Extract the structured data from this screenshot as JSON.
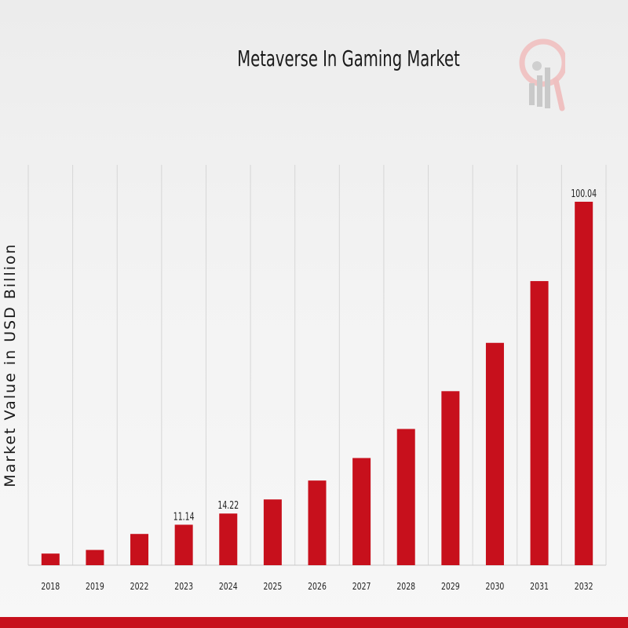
{
  "chart_data": {
    "type": "bar",
    "title": "Metaverse In Gaming Market",
    "ylabel": "Market Value in USD Billion",
    "xlabel": "",
    "categories": [
      "2018",
      "2019",
      "2022",
      "2023",
      "2024",
      "2025",
      "2026",
      "2027",
      "2028",
      "2029",
      "2030",
      "2031",
      "2032"
    ],
    "values": [
      3.2,
      4.2,
      8.6,
      11.14,
      14.22,
      18.1,
      23.3,
      29.5,
      37.5,
      47.9,
      61.2,
      78.2,
      100.04
    ],
    "data_labels": [
      "",
      "",
      "",
      "11.14",
      "14.22",
      "",
      "",
      "",
      "",
      "",
      "",
      "",
      "100.04"
    ],
    "ylim": [
      0,
      110
    ],
    "grid": "vertical",
    "bar_color": "#c7101c"
  },
  "colors": {
    "accent": "#c7101c",
    "logo_gray": "#b8b8b8"
  }
}
